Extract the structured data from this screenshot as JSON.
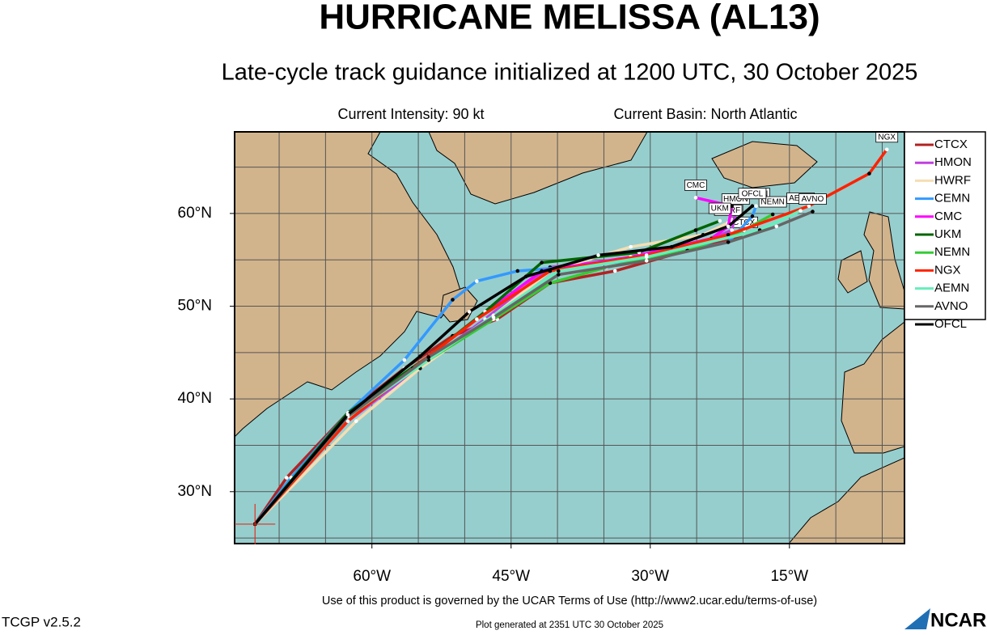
{
  "title": "HURRICANE MELISSA (AL13)",
  "subtitle": "Late-cycle track guidance initialized at 1200 UTC, 30 October 2025",
  "intensity": "Current Intensity: 90 kt",
  "basin": "Current Basin: North Atlantic",
  "map": {
    "type": "track-map",
    "xlim": [
      -74.8,
      -2.6
    ],
    "ylim": [
      24.4,
      68.8
    ],
    "xticks": [
      {
        "value": -60,
        "label": "60°W"
      },
      {
        "value": -45,
        "label": "45°W"
      },
      {
        "value": -30,
        "label": "30°W"
      },
      {
        "value": -15,
        "label": "15°W"
      }
    ],
    "yticks": [
      {
        "value": 30,
        "label": "30°N"
      },
      {
        "value": 40,
        "label": "40°N"
      },
      {
        "value": 50,
        "label": "50°N"
      },
      {
        "value": 60,
        "label": "60°N"
      }
    ],
    "xgrid": [
      -70,
      -65,
      -60,
      -55,
      -50,
      -45,
      -40,
      -35,
      -30,
      -25,
      -20,
      -15,
      -10,
      -5
    ],
    "ygrid": [
      25,
      30,
      35,
      40,
      45,
      50,
      55,
      60,
      65
    ],
    "tracks": [
      {
        "name": "CTCX",
        "color": "#b22222",
        "lon": [
          -72.6,
          -69.2,
          -62.6,
          -56.5,
          -51.3,
          -46.5,
          -40.8,
          -33.8,
          -26.0,
          -19.9
        ],
        "lat": [
          26.5,
          31.5,
          38.5,
          43.3,
          46.8,
          48.6,
          52.5,
          53.8,
          56.0,
          57.7
        ]
      },
      {
        "name": "HMON",
        "color": "#c040e0",
        "lon": [
          -72.6,
          -62.6,
          -55.6,
          -47.8,
          -40.8,
          -30.4,
          -24.3,
          -21.2,
          -20.8
        ],
        "lat": [
          26.5,
          37.6,
          42.9,
          48.6,
          54.2,
          55.3,
          56.9,
          58.2,
          60.2
        ]
      },
      {
        "name": "HWRF",
        "color": "#f5deb3",
        "lon": [
          -72.6,
          -61.7,
          -54.8,
          -46.9,
          -40.8,
          -32.1,
          -24.3,
          -21.6
        ],
        "lat": [
          26.5,
          37.6,
          43.3,
          49.0,
          53.8,
          56.4,
          57.7,
          59.0
        ]
      },
      {
        "name": "CEMN",
        "color": "#3399ff",
        "lon": [
          -72.6,
          -68.7,
          -62.6,
          -56.5,
          -51.3,
          -48.7,
          -44.3,
          -39.1,
          -30.4,
          -21.6,
          -19.0,
          -18.6
        ],
        "lat": [
          26.5,
          31.5,
          38.5,
          44.2,
          50.7,
          52.7,
          53.8,
          54.2,
          55.1,
          56.9,
          59.7,
          60.8
        ]
      },
      {
        "name": "CMC",
        "color": "#ff00ff",
        "lon": [
          -72.6,
          -62.6,
          -55.6,
          -48.7,
          -41.7,
          -32.1,
          -23.4,
          -21.6,
          -21.2,
          -25.1
        ],
        "lat": [
          26.5,
          38.1,
          43.3,
          48.6,
          53.8,
          55.3,
          57.3,
          58.6,
          60.8,
          61.7
        ]
      },
      {
        "name": "UKM",
        "color": "#006400",
        "lon": [
          -72.6,
          -62.6,
          -53.9,
          -47.8,
          -41.7,
          -31.2,
          -25.1,
          -22.5
        ],
        "lat": [
          26.5,
          38.5,
          44.6,
          49.4,
          54.7,
          55.8,
          58.2,
          59.2
        ]
      },
      {
        "name": "NEMN",
        "color": "#33cc33",
        "lon": [
          -72.6,
          -62.6,
          -53.9,
          -46.9,
          -40.8,
          -34.7,
          -26.0,
          -19.9,
          -16.8
        ],
        "lat": [
          26.5,
          38.1,
          44.2,
          48.6,
          52.5,
          54.2,
          56.0,
          58.2,
          59.9
        ]
      },
      {
        "name": "NGX",
        "color": "#ff2200",
        "lon": [
          -72.6,
          -62.6,
          -55.6,
          -48.7,
          -40.8,
          -30.4,
          -21.6,
          -12.9,
          -6.4,
          -4.5
        ],
        "lat": [
          26.5,
          37.6,
          43.3,
          48.6,
          53.8,
          55.5,
          57.7,
          60.8,
          64.3,
          66.9
        ]
      },
      {
        "name": "AEMN",
        "color": "#66eebb",
        "lon": [
          -72.6,
          -62.6,
          -53.9,
          -46.9,
          -39.9,
          -30.4,
          -18.2,
          -13.8
        ],
        "lat": [
          26.5,
          38.1,
          44.2,
          49.0,
          53.8,
          55.3,
          58.2,
          60.3
        ]
      },
      {
        "name": "AVNO",
        "color": "#666666",
        "lon": [
          -72.6,
          -62.6,
          -53.9,
          -46.9,
          -39.9,
          -30.4,
          -21.6,
          -16.4,
          -12.5
        ],
        "lat": [
          26.5,
          38.1,
          44.5,
          48.8,
          53.4,
          54.9,
          56.9,
          58.6,
          60.2
        ]
      },
      {
        "name": "OFCL",
        "color": "#000000",
        "lon": [
          -72.6,
          -62.6,
          -54.8,
          -49.5,
          -43.4,
          -35.6,
          -27.7,
          -21.6,
          -19.0
        ],
        "lat": [
          26.5,
          38.3,
          44.6,
          49.4,
          53.2,
          55.5,
          56.4,
          58.6,
          60.8
        ]
      }
    ]
  },
  "footer": {
    "terms": "Use of this product is governed by the UCAR Terms of Use (http://www2.ucar.edu/terms-of-use)",
    "version": "TCGP v2.5.2",
    "generated": "Plot generated at 2351 UTC   30 October 2025",
    "logo": "NCAR"
  }
}
